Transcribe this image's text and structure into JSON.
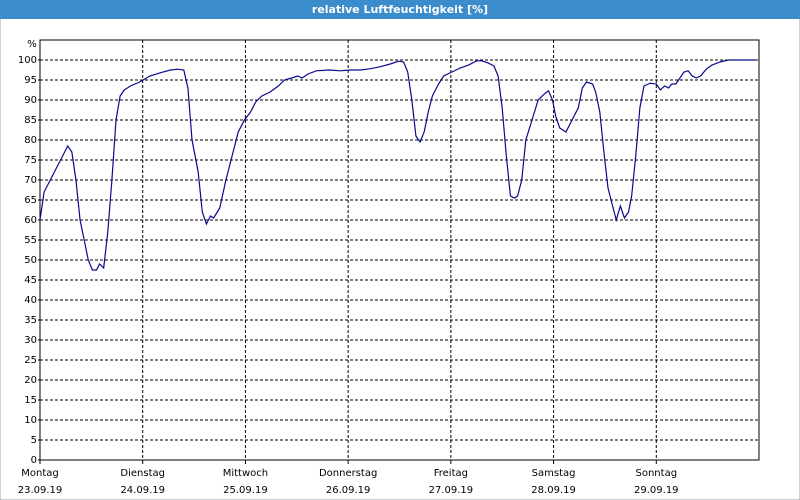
{
  "chart_data": {
    "type": "line",
    "title": "relative Luftfeuchtigkeit [%]",
    "y_label": "%",
    "xlim": [
      0,
      7
    ],
    "ylim": [
      0,
      105
    ],
    "yticks": [
      0,
      5,
      10,
      15,
      20,
      25,
      30,
      35,
      40,
      45,
      50,
      55,
      60,
      65,
      70,
      75,
      80,
      85,
      90,
      95,
      100
    ],
    "xticks": [
      {
        "value": 0,
        "label": "Montag"
      },
      {
        "value": 1,
        "label": "Dienstag"
      },
      {
        "value": 2,
        "label": "Mittwoch"
      },
      {
        "value": 3,
        "label": "Donnerstag"
      },
      {
        "value": 4,
        "label": "Freitag"
      },
      {
        "value": 5,
        "label": "Samstag"
      },
      {
        "value": 6,
        "label": "Sonntag"
      }
    ],
    "xtick_dates": [
      "23.09.19",
      "24.09.19",
      "25.09.19",
      "26.09.19",
      "27.09.19",
      "28.09.19",
      "29.09.19"
    ],
    "grid": true,
    "series": [
      {
        "color": "#0a0a8c",
        "x": [
          0,
          0.04,
          0.1,
          0.16,
          0.21,
          0.27,
          0.31,
          0.35,
          0.39,
          0.43,
          0.47,
          0.51,
          0.55,
          0.58,
          0.62,
          0.66,
          0.7,
          0.74,
          0.78,
          0.82,
          0.88,
          0.97,
          1.07,
          1.17,
          1.27,
          1.34,
          1.4,
          1.44,
          1.48,
          1.54,
          1.58,
          1.62,
          1.66,
          1.69,
          1.75,
          1.81,
          1.87,
          1.93,
          1.99,
          2.05,
          2.1,
          2.16,
          2.24,
          2.32,
          2.38,
          2.45,
          2.51,
          2.55,
          2.61,
          2.69,
          2.82,
          2.92,
          3.02,
          3.12,
          3.21,
          3.31,
          3.41,
          3.49,
          3.54,
          3.58,
          3.62,
          3.66,
          3.7,
          3.74,
          3.78,
          3.82,
          3.88,
          3.93,
          4.01,
          4.09,
          4.17,
          4.25,
          4.3,
          4.36,
          4.42,
          4.46,
          4.5,
          4.54,
          4.58,
          4.62,
          4.65,
          4.69,
          4.73,
          4.79,
          4.85,
          4.91,
          4.95,
          4.99,
          5.02,
          5.06,
          5.12,
          5.16,
          5.2,
          5.24,
          5.28,
          5.32,
          5.38,
          5.41,
          5.45,
          5.49,
          5.53,
          5.57,
          5.61,
          5.65,
          5.69,
          5.73,
          5.76,
          5.8,
          5.84,
          5.88,
          5.94,
          6,
          6.04,
          6.08,
          6.12,
          6.15,
          6.19,
          6.23,
          6.27,
          6.31,
          6.35,
          6.39,
          6.43,
          6.49,
          6.54,
          6.62,
          6.7,
          6.82,
          6.97
        ],
        "values": [
          60,
          67,
          70,
          73,
          75.5,
          78.5,
          77,
          70,
          60,
          55,
          50,
          47.5,
          47.5,
          49,
          48,
          57,
          70,
          85,
          91,
          92.5,
          93.5,
          94.5,
          96,
          96.8,
          97.5,
          97.7,
          97.5,
          93,
          80,
          72,
          62,
          59,
          61,
          60.5,
          63,
          70,
          76,
          82,
          85,
          87,
          89.5,
          91,
          92,
          93.5,
          95,
          95.5,
          96,
          95.5,
          96.5,
          97.3,
          97.5,
          97.3,
          97.5,
          97.5,
          97.8,
          98.3,
          99,
          99.7,
          99.5,
          97,
          90,
          81,
          79.5,
          82,
          87,
          91,
          94,
          96,
          97,
          98,
          98.7,
          99.8,
          99.8,
          99.3,
          98.5,
          96,
          88,
          76,
          66,
          65.5,
          66,
          70,
          80,
          85,
          90,
          91.5,
          92.3,
          90,
          86,
          83,
          82,
          84,
          86,
          88,
          93,
          94.5,
          94,
          92,
          87,
          77,
          68,
          64,
          60,
          63.5,
          60.5,
          62,
          66,
          76,
          88,
          93.5,
          94.2,
          94,
          92.5,
          93.5,
          93,
          94,
          94,
          95.5,
          97,
          97.3,
          96,
          95.5,
          96,
          97.8,
          98.7,
          99.5,
          100,
          100,
          100
        ]
      }
    ]
  }
}
